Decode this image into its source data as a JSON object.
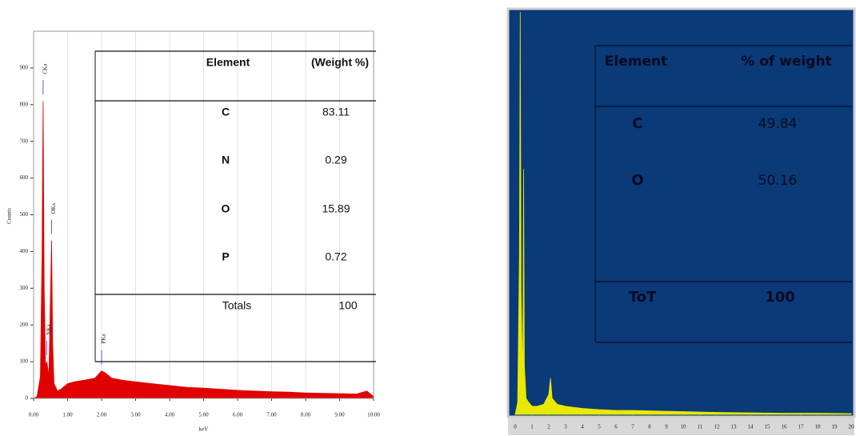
{
  "chart_data": [
    {
      "type": "area",
      "color": "#e00000",
      "background": "#ffffff",
      "grid": true,
      "x_label": "keV",
      "y_label": "Counts",
      "x": [
        0,
        0.1,
        0.2,
        0.25,
        0.28,
        0.31,
        0.35,
        0.39,
        0.45,
        0.5,
        0.53,
        0.56,
        0.6,
        0.7,
        0.8,
        1,
        1.2,
        1.5,
        1.8,
        2.0,
        2.1,
        2.3,
        2.6,
        3,
        3.5,
        4,
        4.5,
        5,
        5.5,
        6,
        6.5,
        7,
        7.5,
        8,
        8.5,
        9,
        9.5,
        9.8,
        10
      ],
      "values": [
        0,
        5,
        60,
        400,
        810,
        300,
        90,
        100,
        60,
        300,
        430,
        150,
        40,
        20,
        25,
        40,
        45,
        50,
        55,
        75,
        70,
        55,
        50,
        45,
        40,
        35,
        30,
        28,
        25,
        22,
        20,
        18,
        17,
        15,
        14,
        13,
        12,
        20,
        5
      ],
      "xlim": [
        0,
        10
      ],
      "ylim": [
        0,
        1000
      ],
      "xticks": [
        {
          "value": 0,
          "label": "0.00"
        },
        {
          "value": 1,
          "label": "1.00"
        },
        {
          "value": 2,
          "label": "2.00"
        },
        {
          "value": 3,
          "label": "3.00"
        },
        {
          "value": 4,
          "label": "4.00"
        },
        {
          "value": 5,
          "label": "5.00"
        },
        {
          "value": 6,
          "label": "6.00"
        },
        {
          "value": 7,
          "label": "7.00"
        },
        {
          "value": 8,
          "label": "8.00"
        },
        {
          "value": 9,
          "label": "9.00"
        },
        {
          "value": 10,
          "label": "10.00"
        }
      ],
      "yticks": [
        0,
        100,
        200,
        300,
        400,
        500,
        600,
        700,
        800,
        900
      ],
      "annotations": [
        {
          "text": "CKa",
          "x": 0.28
        },
        {
          "text": "NKa",
          "x": 0.39
        },
        {
          "text": "OKa",
          "x": 0.53
        },
        {
          "text": "PKa",
          "x": 2.0
        }
      ],
      "table": {
        "header": [
          "Element",
          "(Weight %)"
        ],
        "rows": [
          [
            "C",
            "83.11"
          ],
          [
            "N",
            "0.29"
          ],
          [
            "O",
            "15.89"
          ],
          [
            "P",
            "0.72"
          ]
        ],
        "total": [
          "Totals",
          "100"
        ]
      }
    },
    {
      "type": "area",
      "color": "#e8e800",
      "background": "#0a3a78",
      "grid": false,
      "x": [
        0,
        0.15,
        0.25,
        0.3,
        0.35,
        0.45,
        0.5,
        0.55,
        0.65,
        0.8,
        1,
        1.3,
        1.7,
        2.0,
        2.1,
        2.2,
        2.5,
        3,
        4,
        5,
        6,
        7,
        8,
        9,
        10,
        12,
        14,
        16,
        18,
        20
      ],
      "values": [
        0,
        3,
        40,
        100,
        30,
        8,
        61,
        12,
        4,
        3,
        2,
        2,
        2.5,
        5,
        9,
        4,
        2.5,
        2,
        1.5,
        1.2,
        1,
        1,
        0.9,
        0.8,
        0.7,
        0.5,
        0.4,
        0.3,
        0.3,
        0.2
      ],
      "xlim": [
        0,
        20
      ],
      "ylim": [
        0,
        100
      ],
      "xticks": [
        0,
        1,
        2,
        3,
        4,
        5,
        6,
        7,
        8,
        9,
        10,
        11,
        12,
        13,
        14,
        15,
        16,
        17,
        18,
        19,
        20
      ],
      "table": {
        "header": [
          "Element",
          "% of weight"
        ],
        "rows": [
          [
            "C",
            "49.84"
          ],
          [
            "O",
            "50.16"
          ]
        ],
        "total": [
          "ToT",
          "100"
        ]
      }
    }
  ]
}
